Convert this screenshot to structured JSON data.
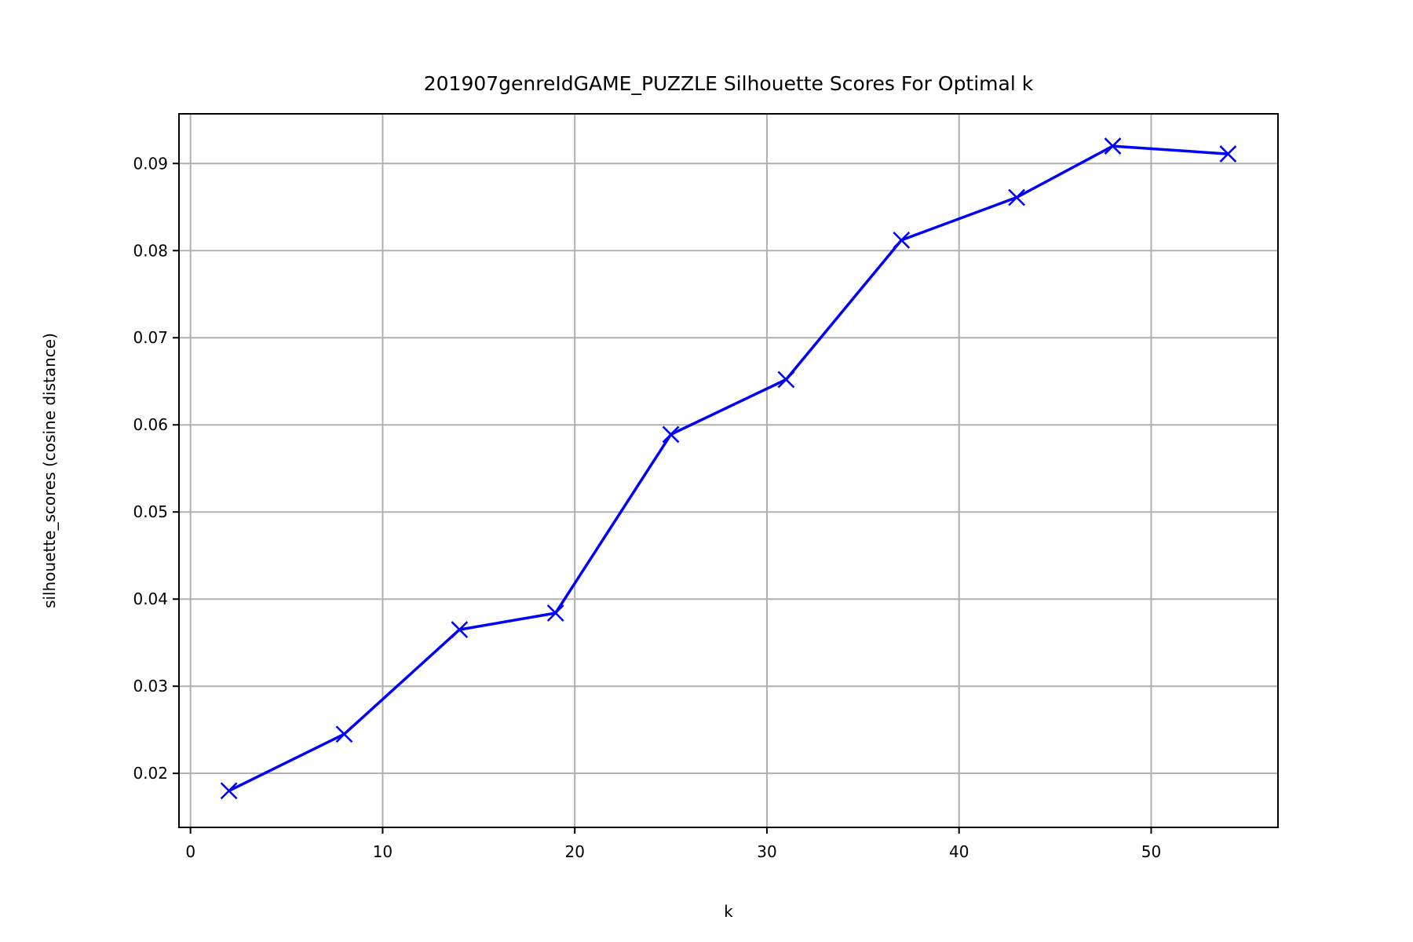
{
  "chart_data": {
    "type": "line",
    "title": "201907genreIdGAME_PUZZLE Silhouette Scores For Optimal k",
    "xlabel": "k",
    "ylabel": "silhouette_scores (cosine distance)",
    "xlim": [
      -0.6,
      56.6
    ],
    "ylim": [
      0.0138,
      0.0957
    ],
    "x_ticks": [
      0,
      10,
      20,
      30,
      40,
      50
    ],
    "y_ticks": [
      0.02,
      0.03,
      0.04,
      0.05,
      0.06,
      0.07,
      0.08,
      0.09
    ],
    "x_tick_labels": [
      "0",
      "10",
      "20",
      "30",
      "40",
      "50"
    ],
    "y_tick_labels": [
      "0.02",
      "0.03",
      "0.04",
      "0.05",
      "0.06",
      "0.07",
      "0.08",
      "0.09"
    ],
    "grid": true,
    "marker": "x",
    "color": "#0000ff",
    "series": [
      {
        "x": [
          2,
          8,
          14,
          19,
          25,
          31,
          37,
          43,
          48,
          54
        ],
        "y": [
          0.018,
          0.0245,
          0.0365,
          0.0384,
          0.0589,
          0.0652,
          0.0812,
          0.0861,
          0.092,
          0.0911
        ]
      }
    ]
  }
}
